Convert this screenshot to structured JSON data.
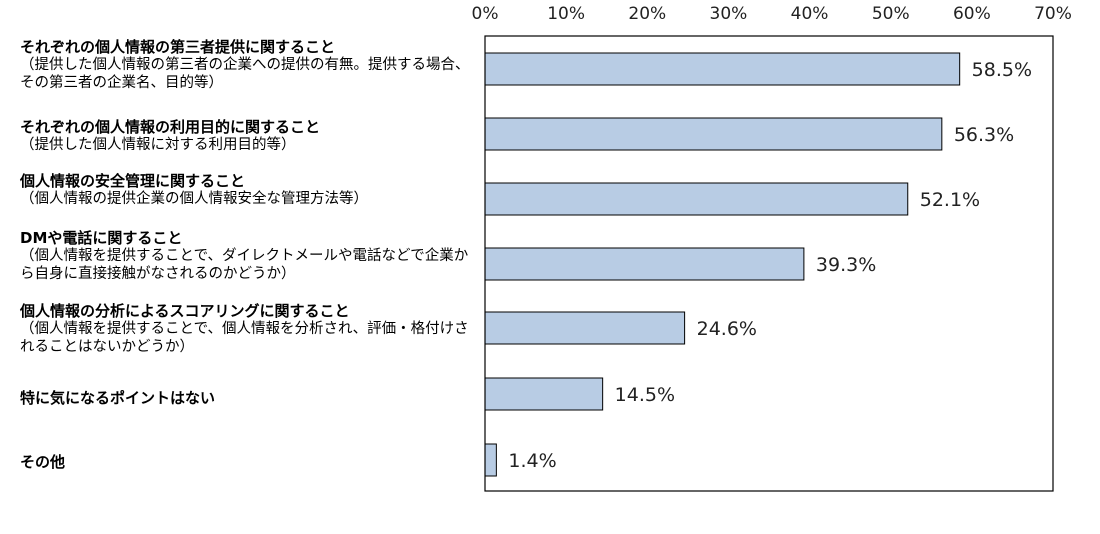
{
  "chart_data": {
    "type": "bar",
    "orientation": "horizontal",
    "xlim": [
      0,
      70
    ],
    "ticks": [
      "0%",
      "10%",
      "20%",
      "30%",
      "40%",
      "50%",
      "60%",
      "70%"
    ],
    "categories": [
      {
        "title": "それぞれの個人情報の第三者提供に関すること",
        "subtitle": "（提供した個人情報の第三者の企業への提供の有無。提供する場合、その第三者の企業名、目的等）"
      },
      {
        "title": "それぞれの個人情報の利用目的に関すること",
        "subtitle": "（提供した個人情報に対する利用目的等）"
      },
      {
        "title": "個人情報の安全管理に関すること",
        "subtitle": "（個人情報の提供企業の個人情報安全な管理方法等）"
      },
      {
        "title": "DMや電話に関すること",
        "subtitle": "（個人情報を提供することで、ダイレクトメールや電話などで企業から自身に直接接触がなされるのかどうか）"
      },
      {
        "title": "個人情報の分析によるスコアリングに関すること",
        "subtitle": "（個人情報を提供することで、個人情報を分析され、評価・格付けされることはないかどうか）"
      },
      {
        "title": "特に気になるポイントはない",
        "subtitle": ""
      },
      {
        "title": "その他",
        "subtitle": ""
      }
    ],
    "values": [
      58.5,
      56.3,
      52.1,
      39.3,
      24.6,
      14.5,
      1.4
    ],
    "data_labels": [
      "58.5%",
      "56.3%",
      "52.1%",
      "39.3%",
      "24.6%",
      "14.5%",
      "1.4%"
    ],
    "grid": false,
    "colors": {
      "bar_fill": "#b8cce4",
      "bar_stroke": "#000000",
      "frame": "#000000"
    }
  }
}
